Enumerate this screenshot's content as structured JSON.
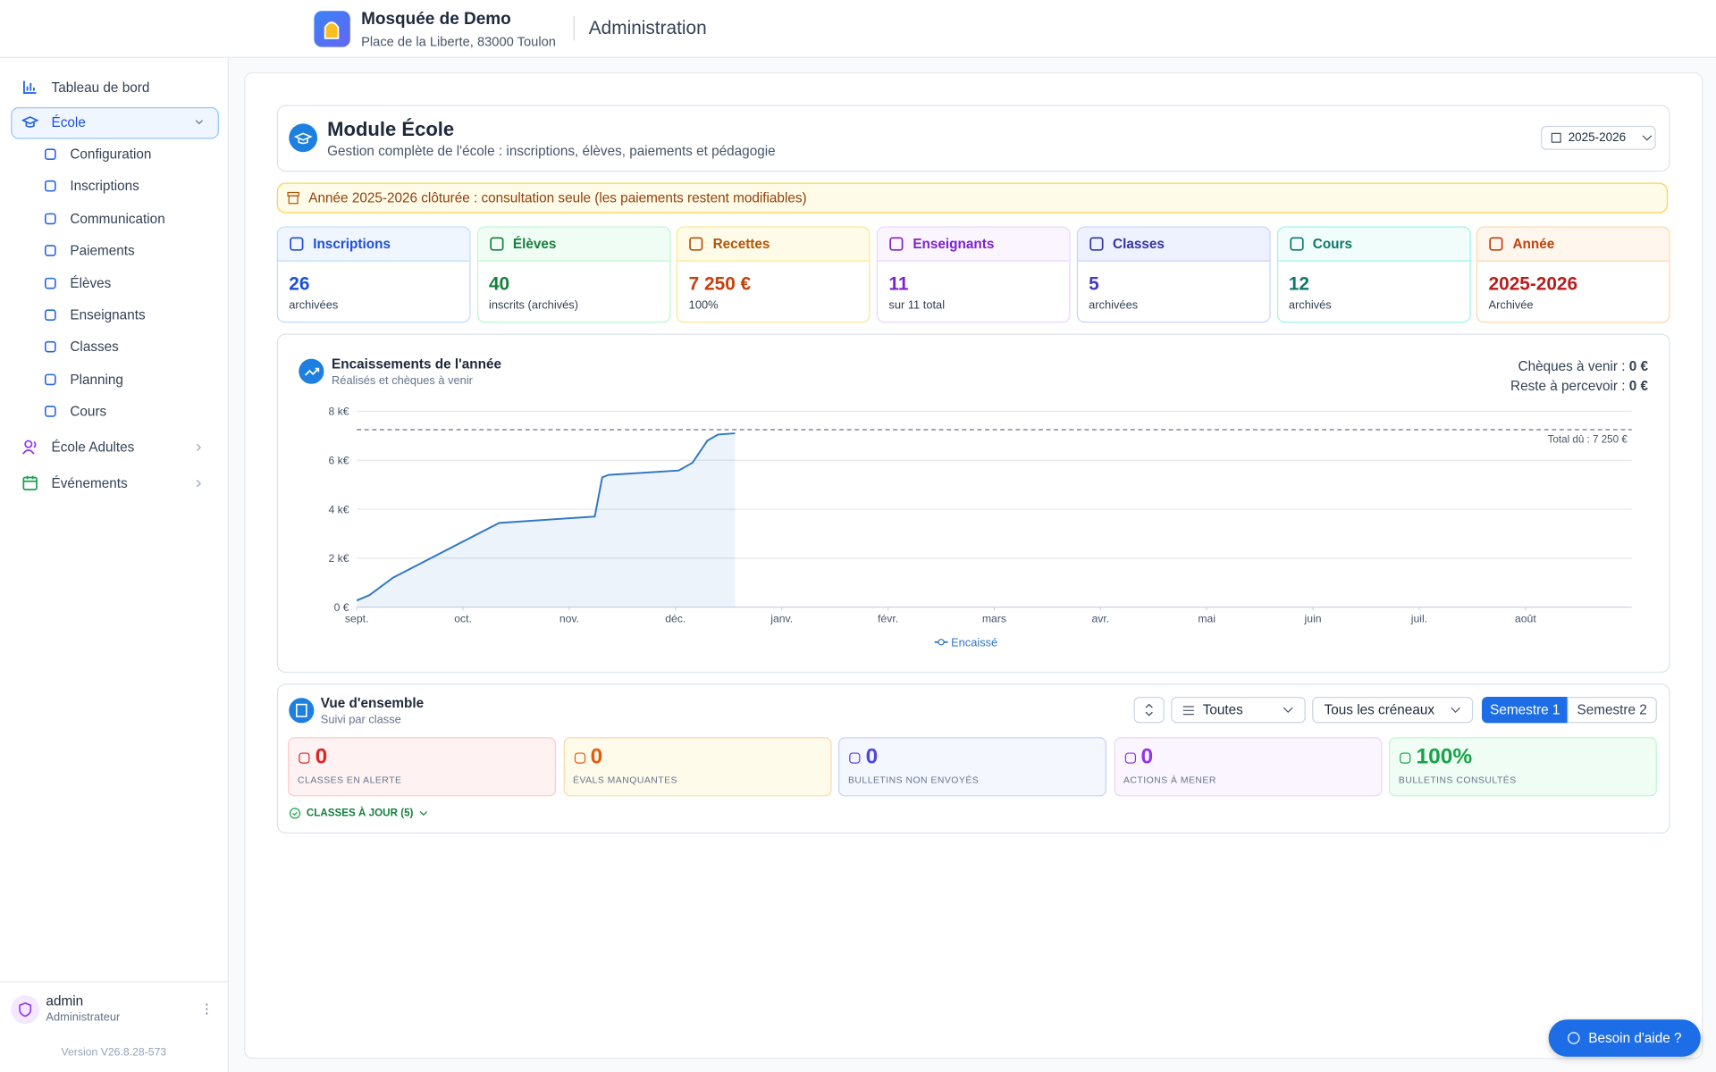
{
  "header": {
    "org_name": "Mosquée de Demo",
    "address": "Place de la Liberte, 83000 Toulon",
    "section": "Administration"
  },
  "sidebar": {
    "dashboard": "Tableau de bord",
    "school": "École",
    "school_items": [
      "Configuration",
      "Inscriptions",
      "Communication",
      "Paiements",
      "Élèves",
      "Enseignants",
      "Classes",
      "Planning",
      "Cours"
    ],
    "adults": "École Adultes",
    "events": "Événements",
    "user": {
      "name": "admin",
      "role": "Administrateur"
    },
    "version": "Version V26.8.28-573"
  },
  "module": {
    "title": "Module École",
    "subtitle": "Gestion complète de l'école : inscriptions, élèves, paiements et pédagogie",
    "year_select": "2025-2026"
  },
  "alert": "Année 2025-2026 clôturée : consultation seule (les paiements restent modifiables)",
  "stats": [
    {
      "label": "Inscriptions",
      "value": 26,
      "note": "archivées"
    },
    {
      "label": "Élèves",
      "value": 40,
      "note": "inscrits (archivés)"
    },
    {
      "label": "Recettes",
      "value": "7 250 €",
      "note": "100%"
    },
    {
      "label": "Enseignants",
      "value": 11,
      "note": "sur 11 total"
    },
    {
      "label": "Classes",
      "value": 5,
      "note": "archivées"
    },
    {
      "label": "Cours",
      "value": 12,
      "note": "archivés"
    },
    {
      "label": "Année",
      "value": "2025-2026",
      "note": "Archivée"
    }
  ],
  "chart_data": {
    "type": "line",
    "title": "Encaissements de l'année",
    "subtitle": "Réalisés et chèques à venir",
    "side_info": [
      {
        "label": "Chèques à venir :",
        "value": "0 €"
      },
      {
        "label": "Reste à percevoir :",
        "value": "0 €"
      }
    ],
    "x": [
      0,
      0.12,
      0.34,
      1.34,
      2.24,
      2.31,
      2.37,
      3.03,
      3.16,
      3.3,
      3.4,
      3.56
    ],
    "series": [
      {
        "name": "Encaissé",
        "color": "#2f78c4",
        "values": [
          270,
          490,
          1200,
          3440,
          3700,
          5300,
          5400,
          5580,
          5900,
          6800,
          7050,
          7100
        ]
      }
    ],
    "xlim": [
      0,
      12
    ],
    "xticks": [
      {
        "value": 0,
        "label": "sept."
      },
      {
        "value": 1,
        "label": "oct."
      },
      {
        "value": 2,
        "label": "nov."
      },
      {
        "value": 3,
        "label": "déc."
      },
      {
        "value": 4,
        "label": "janv."
      },
      {
        "value": 5,
        "label": "févr."
      },
      {
        "value": 6,
        "label": "mars"
      },
      {
        "value": 7,
        "label": "avr."
      },
      {
        "value": 8,
        "label": "mai"
      },
      {
        "value": 9,
        "label": "juin"
      },
      {
        "value": 10,
        "label": "juil."
      },
      {
        "value": 11,
        "label": "août"
      }
    ],
    "ylim": [
      0,
      8000
    ],
    "yticks": [
      {
        "value": 0,
        "label": "0 €"
      },
      {
        "value": 2000,
        "label": "2 k€"
      },
      {
        "value": 4000,
        "label": "4 k€"
      },
      {
        "value": 6000,
        "label": "6 k€"
      },
      {
        "value": 8000,
        "label": "8 k€"
      }
    ],
    "reference": {
      "value": 7250,
      "label": "Total dû : 7 250 €"
    },
    "grid": true
  },
  "overview": {
    "title": "Vue d'ensemble",
    "subtitle": "Suivi par classe",
    "class_filter": "Toutes",
    "slot_filter": "Tous les créneaux",
    "semesters": [
      "Semestre 1",
      "Semestre 2"
    ],
    "kpis": [
      {
        "value": "0",
        "label": "CLASSES EN ALERTE"
      },
      {
        "value": "0",
        "label": "ÉVALS MANQUANTES"
      },
      {
        "value": "0",
        "label": "BULLETINS NON ENVOYÉS"
      },
      {
        "value": "0",
        "label": "ACTIONS À MENER"
      },
      {
        "value": "100%",
        "label": "BULLETINS CONSULTÉS"
      }
    ],
    "up_to_date": "CLASSES À JOUR (5)"
  },
  "help": "Besoin d'aide ?"
}
